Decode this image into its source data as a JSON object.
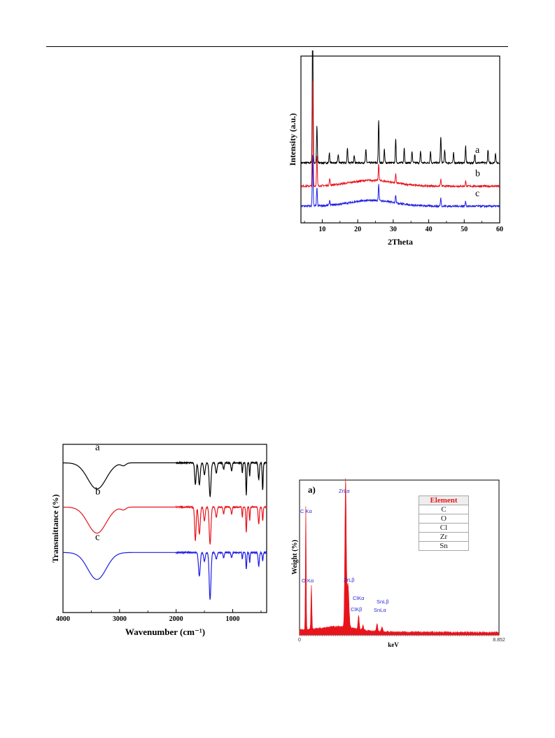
{
  "xrd": {
    "chart_data": {
      "type": "line",
      "xlabel": "2Theta",
      "ylabel": "Intensity (a.u.)",
      "xlim": [
        4,
        60
      ],
      "xticks": [
        10,
        20,
        30,
        40,
        50,
        60
      ],
      "series": [
        {
          "name": "a",
          "color": "#000000",
          "baseline": 0.36,
          "peaks": [
            [
              7.3,
              0.86
            ],
            [
              8.5,
              0.22
            ],
            [
              12.0,
              0.06
            ],
            [
              14.5,
              0.05
            ],
            [
              17.1,
              0.09
            ],
            [
              19.0,
              0.05
            ],
            [
              22.3,
              0.08
            ],
            [
              25.9,
              0.26
            ],
            [
              27.5,
              0.08
            ],
            [
              30.7,
              0.14
            ],
            [
              33.1,
              0.09
            ],
            [
              35.3,
              0.07
            ],
            [
              37.7,
              0.07
            ],
            [
              40.5,
              0.07
            ],
            [
              43.4,
              0.16
            ],
            [
              44.5,
              0.08
            ],
            [
              47.0,
              0.06
            ],
            [
              50.4,
              0.1
            ],
            [
              53.0,
              0.05
            ],
            [
              56.7,
              0.08
            ],
            [
              58.8,
              0.06
            ]
          ]
        },
        {
          "name": "b",
          "color": "#e8141c",
          "baseline": 0.22,
          "peaks": [
            [
              7.3,
              0.63
            ],
            [
              8.5,
              0.18
            ],
            [
              12.1,
              0.04
            ],
            [
              25.9,
              0.1
            ],
            [
              30.7,
              0.05
            ],
            [
              43.4,
              0.04
            ],
            [
              50.4,
              0.03
            ]
          ]
        },
        {
          "name": "c",
          "color": "#1f1fe6",
          "baseline": 0.1,
          "peaks": [
            [
              7.3,
              0.31
            ],
            [
              8.5,
              0.11
            ],
            [
              12.1,
              0.03
            ],
            [
              25.9,
              0.1
            ],
            [
              30.7,
              0.05
            ],
            [
              43.4,
              0.05
            ],
            [
              50.4,
              0.03
            ]
          ]
        }
      ]
    }
  },
  "ftir": {
    "chart_data": {
      "type": "line",
      "xlabel": "Wavenumber (cm⁻¹)",
      "ylabel": "Transmittance (%)",
      "xlim": [
        4000,
        400
      ],
      "xticks": [
        4000,
        3000,
        2000,
        1000
      ],
      "series": [
        {
          "name": "a",
          "color": "#000000",
          "offset": 0.0,
          "bands": [
            [
              3400,
              0.155,
              230
            ],
            [
              2930,
              0.015,
              60
            ],
            [
              1660,
              0.13,
              18
            ],
            [
              1590,
              0.13,
              22
            ],
            [
              1500,
              0.07,
              20
            ],
            [
              1400,
              0.2,
              22
            ],
            [
              1290,
              0.06,
              20
            ],
            [
              1160,
              0.04,
              15
            ],
            [
              1020,
              0.05,
              15
            ],
            [
              830,
              0.06,
              10
            ],
            [
              760,
              0.19,
              12
            ],
            [
              700,
              0.08,
              10
            ],
            [
              540,
              0.1,
              15
            ],
            [
              470,
              0.16,
              12
            ]
          ]
        },
        {
          "name": "b",
          "color": "#e8141c",
          "offset": 0.263,
          "bands": [
            [
              3400,
              0.155,
              230
            ],
            [
              2930,
              0.015,
              60
            ],
            [
              1660,
              0.2,
              18
            ],
            [
              1590,
              0.16,
              22
            ],
            [
              1500,
              0.08,
              20
            ],
            [
              1400,
              0.22,
              22
            ],
            [
              1290,
              0.06,
              20
            ],
            [
              1160,
              0.04,
              15
            ],
            [
              1020,
              0.04,
              15
            ],
            [
              830,
              0.06,
              10
            ],
            [
              760,
              0.15,
              12
            ],
            [
              700,
              0.08,
              10
            ],
            [
              540,
              0.1,
              15
            ],
            [
              470,
              0.08,
              12
            ]
          ]
        },
        {
          "name": "c",
          "color": "#1f1fe6",
          "offset": 0.533,
          "bands": [
            [
              3400,
              0.16,
              230
            ],
            [
              1590,
              0.14,
              22
            ],
            [
              1500,
              0.05,
              20
            ],
            [
              1400,
              0.28,
              22
            ],
            [
              1290,
              0.04,
              20
            ],
            [
              1160,
              0.03,
              15
            ],
            [
              1020,
              0.03,
              15
            ],
            [
              830,
              0.04,
              10
            ],
            [
              760,
              0.1,
              12
            ],
            [
              700,
              0.06,
              10
            ],
            [
              540,
              0.08,
              15
            ],
            [
              470,
              0.05,
              12
            ]
          ]
        }
      ]
    }
  },
  "eds": {
    "panel_label": "a)",
    "chart_data": {
      "type": "area",
      "xlabel": "keV",
      "ylabel": "Weight (%)",
      "xlim": [
        0,
        8.852
      ],
      "x_min_label": "0",
      "x_max_label": "8.852",
      "peaks": [
        [
          0.277,
          0.79,
          0.025
        ],
        [
          0.525,
          0.28,
          0.03
        ],
        [
          2.042,
          0.95,
          0.045
        ],
        [
          2.15,
          0.28,
          0.06
        ],
        [
          2.622,
          0.09,
          0.04
        ],
        [
          2.815,
          0.03,
          0.04
        ],
        [
          3.44,
          0.05,
          0.04
        ],
        [
          3.66,
          0.03,
          0.05
        ]
      ],
      "peak_labels": [
        {
          "text": "C Kα",
          "x": 0.277
        },
        {
          "text": "O Kα",
          "x": 0.525
        },
        {
          "text": "ZrLα",
          "x": 2.042
        },
        {
          "text": "ZrLβ",
          "x": 2.15
        },
        {
          "text": "ClKα",
          "x": 2.622
        },
        {
          "text": "ClKβ",
          "x": 2.815
        },
        {
          "text": "SnLα",
          "x": 3.44
        },
        {
          "text": "SnLβ",
          "x": 3.66
        }
      ],
      "table": {
        "header": "Element",
        "rows": [
          "C",
          "O",
          "Cl",
          "Zr",
          "Sn"
        ]
      }
    }
  },
  "colors": {
    "peak_label": "#2b2bd4",
    "eds_fill": "#e8141c",
    "table_header": "#e8141c"
  }
}
